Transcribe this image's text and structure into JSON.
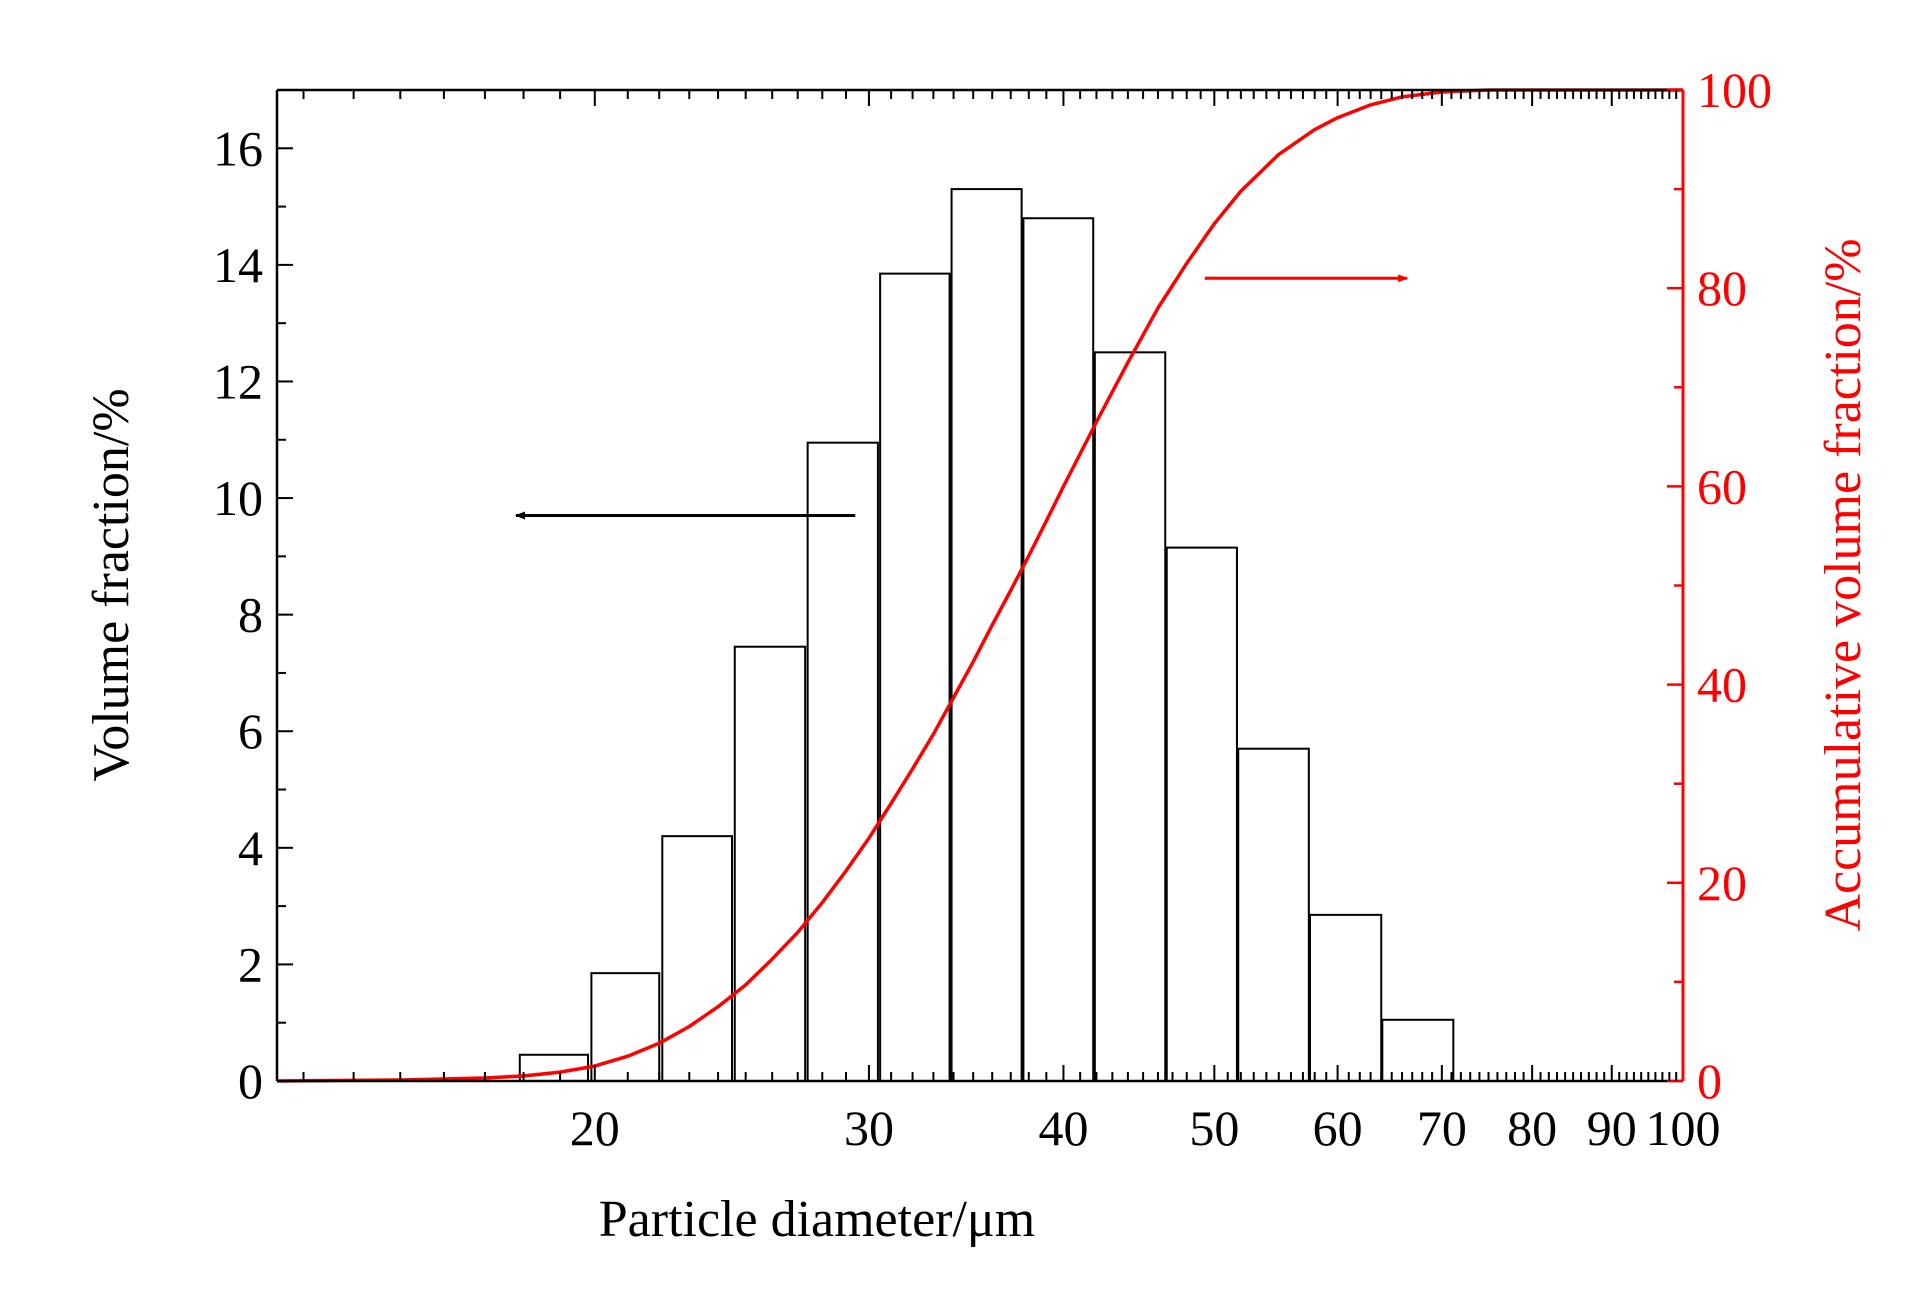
{
  "chart_data": {
    "type": "bar",
    "x_scale": "log",
    "xlim": [
      12.5,
      100
    ],
    "xlabel": "Particle diameter/μm",
    "x_ticks": [
      20,
      30,
      40,
      50,
      60,
      70,
      80,
      90,
      100
    ],
    "x_tick_labels": [
      "20",
      "30",
      "40",
      "50",
      "60",
      "70",
      "80",
      "90",
      "100"
    ],
    "y_left": {
      "label": "Volume fraction/%",
      "lim": [
        0,
        17
      ],
      "ticks": [
        0,
        2,
        4,
        6,
        8,
        10,
        12,
        14,
        16
      ],
      "tick_labels": [
        "0",
        "2",
        "4",
        "6",
        "8",
        "10",
        "12",
        "14",
        "16"
      ],
      "color": "#000000"
    },
    "y_right": {
      "label": "Accumulative volume fraction/%",
      "lim": [
        0,
        100
      ],
      "ticks": [
        0,
        20,
        40,
        60,
        80,
        100
      ],
      "tick_labels": [
        "0",
        "20",
        "40",
        "60",
        "80",
        "100"
      ],
      "color": "#ff0000"
    },
    "bars": [
      {
        "x_start": 17.9,
        "x_end": 19.8,
        "value": 0.45
      },
      {
        "x_start": 19.9,
        "x_end": 22.0,
        "value": 1.85
      },
      {
        "x_start": 22.1,
        "x_end": 24.5,
        "value": 4.2
      },
      {
        "x_start": 24.6,
        "x_end": 27.3,
        "value": 7.45
      },
      {
        "x_start": 27.4,
        "x_end": 30.4,
        "value": 10.95
      },
      {
        "x_start": 30.5,
        "x_end": 33.8,
        "value": 13.85
      },
      {
        "x_start": 33.9,
        "x_end": 37.6,
        "value": 15.3
      },
      {
        "x_start": 37.7,
        "x_end": 41.8,
        "value": 14.8
      },
      {
        "x_start": 41.9,
        "x_end": 46.5,
        "value": 12.5
      },
      {
        "x_start": 46.6,
        "x_end": 51.7,
        "value": 9.15
      },
      {
        "x_start": 51.8,
        "x_end": 57.5,
        "value": 5.7
      },
      {
        "x_start": 57.6,
        "x_end": 64.0,
        "value": 2.85
      },
      {
        "x_start": 64.1,
        "x_end": 71.2,
        "value": 1.05
      }
    ],
    "cumulative": {
      "axis": "right",
      "color": "#ff0000",
      "points": [
        [
          12.5,
          0
        ],
        [
          15,
          0.1
        ],
        [
          17,
          0.3
        ],
        [
          18,
          0.5
        ],
        [
          19,
          0.9
        ],
        [
          20,
          1.5
        ],
        [
          21,
          2.5
        ],
        [
          22,
          3.8
        ],
        [
          23,
          5.5
        ],
        [
          24,
          7.5
        ],
        [
          25,
          9.7
        ],
        [
          26,
          12.3
        ],
        [
          27,
          15
        ],
        [
          28,
          18
        ],
        [
          29,
          21.2
        ],
        [
          30,
          24.5
        ],
        [
          31,
          28
        ],
        [
          32,
          31.5
        ],
        [
          33,
          35
        ],
        [
          34,
          38.7
        ],
        [
          35,
          42.3
        ],
        [
          36,
          46
        ],
        [
          37,
          49.5
        ],
        [
          38,
          53
        ],
        [
          39,
          56.5
        ],
        [
          40,
          60
        ],
        [
          42,
          66.5
        ],
        [
          44,
          72.5
        ],
        [
          46,
          78
        ],
        [
          48,
          82.5
        ],
        [
          50,
          86.5
        ],
        [
          52,
          89.8
        ],
        [
          55,
          93.5
        ],
        [
          58,
          96
        ],
        [
          60,
          97.2
        ],
        [
          63,
          98.5
        ],
        [
          66,
          99.3
        ],
        [
          70,
          99.8
        ],
        [
          75,
          100
        ],
        [
          80,
          100
        ],
        [
          100,
          100
        ]
      ]
    },
    "annotations": [
      {
        "type": "arrow",
        "direction": "left",
        "color": "#000000",
        "meaning": "bars use left axis"
      },
      {
        "type": "arrow",
        "direction": "right",
        "color": "#ff0000",
        "meaning": "curve uses right axis"
      }
    ],
    "grid": false,
    "legend": "none"
  }
}
